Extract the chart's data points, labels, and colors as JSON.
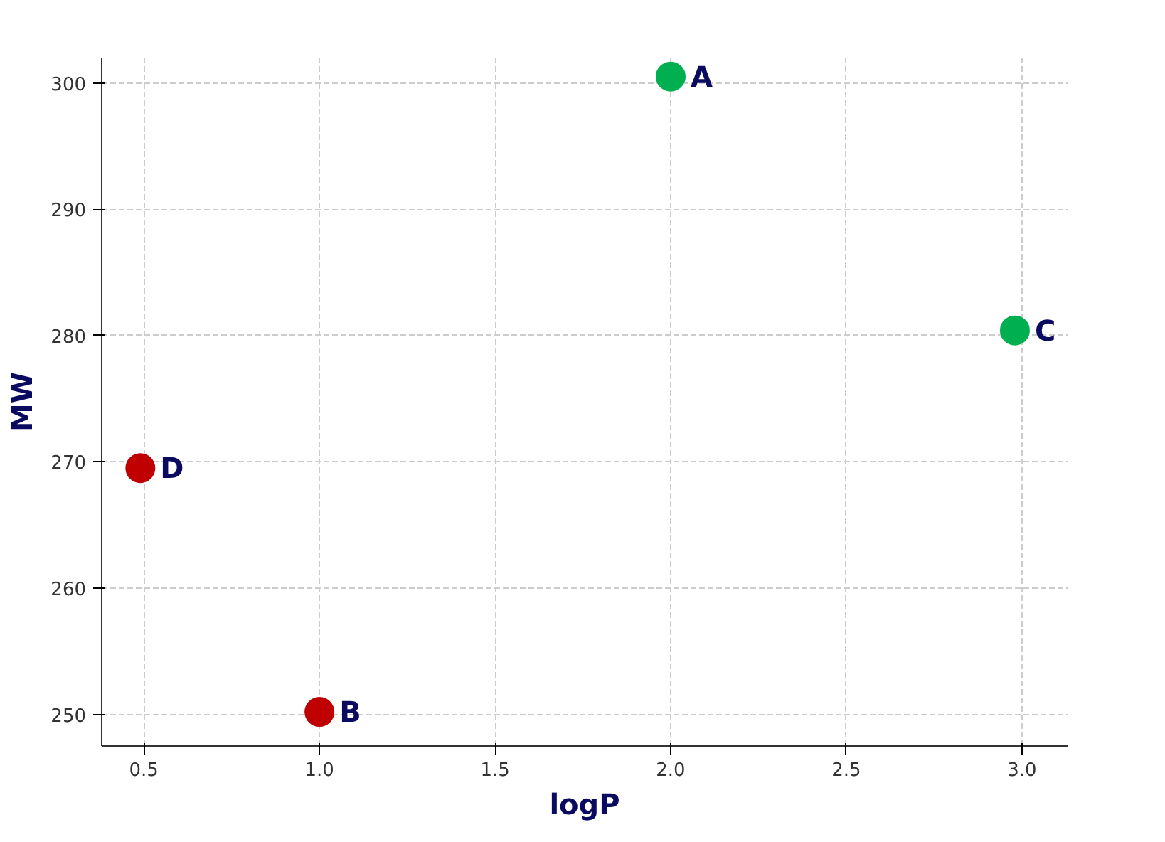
{
  "chart_data": {
    "type": "scatter",
    "xlabel": "logP",
    "ylabel": "MW",
    "x": [
      2.0,
      1.0,
      2.98,
      0.49
    ],
    "values": [
      300.5,
      250.2,
      280.4,
      269.5
    ],
    "colors": [
      "#00b050",
      "#c00000",
      "#00b050",
      "#c00000"
    ],
    "annotations": [
      {
        "text": "A",
        "x": 2.0,
        "y": 300.5
      },
      {
        "text": "B",
        "x": 1.0,
        "y": 250.2
      },
      {
        "text": "C",
        "x": 2.98,
        "y": 280.4
      },
      {
        "text": "D",
        "x": 0.49,
        "y": 269.5
      }
    ],
    "xlim": [
      0.38,
      3.13
    ],
    "ylim": [
      247.5,
      302
    ],
    "xticks": [
      {
        "value": 0.5,
        "label": "0.5"
      },
      {
        "value": 1.0,
        "label": "1.0"
      },
      {
        "value": 1.5,
        "label": "1.5"
      },
      {
        "value": 2.0,
        "label": "2.0"
      },
      {
        "value": 2.5,
        "label": "2.5"
      },
      {
        "value": 3.0,
        "label": "3.0"
      }
    ],
    "yticks": [
      250,
      260,
      270,
      280,
      290,
      300
    ],
    "grid": true,
    "marker": "circle"
  }
}
